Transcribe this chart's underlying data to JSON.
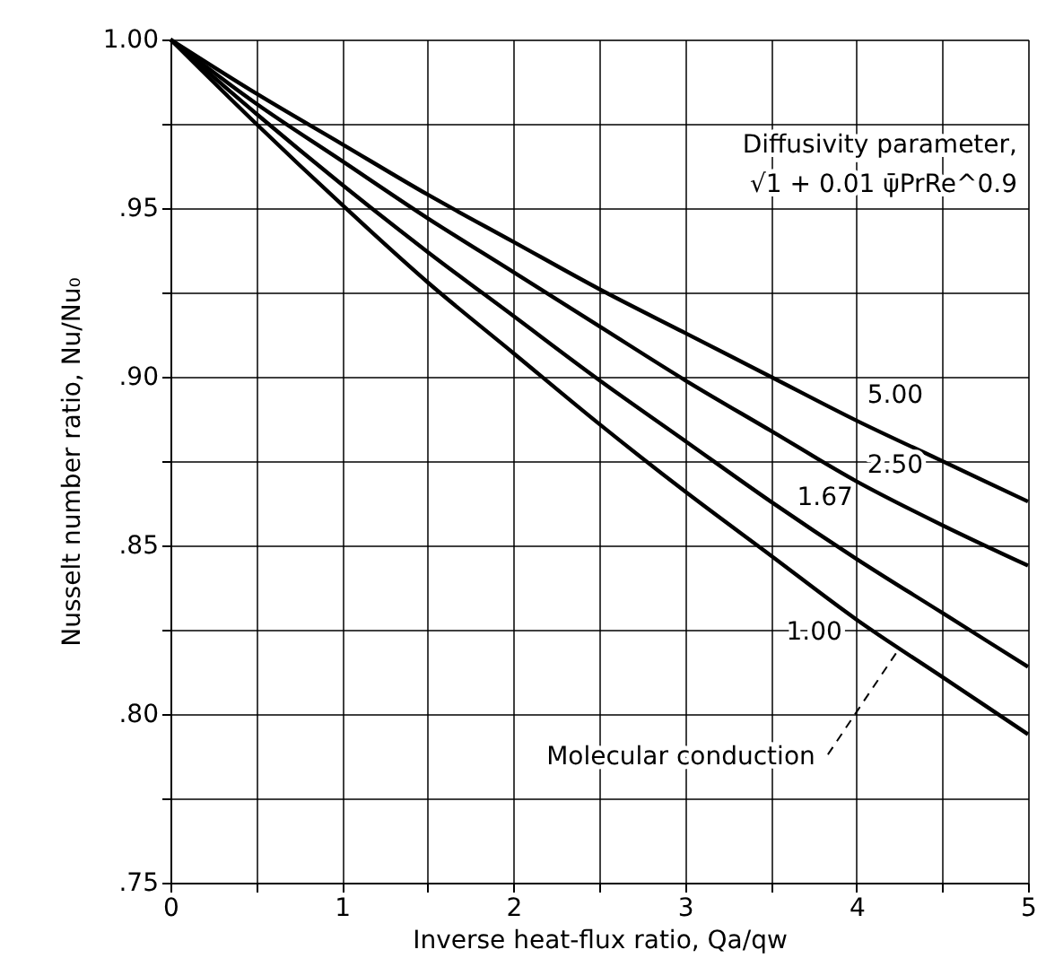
{
  "chart_data": {
    "type": "line",
    "xlabel": "Inverse heat-flux ratio, Qa/qw",
    "ylabel": "Nusselt number ratio, Nu/Nu₀",
    "legend_title": [
      "Diffusivity parameter,",
      "√1 + 0.01 ψ̄PrRe^0.9"
    ],
    "x": [
      0,
      0.5,
      1,
      1.5,
      2,
      2.5,
      3,
      3.5,
      4,
      4.5,
      5
    ],
    "series": [
      {
        "name": "5.00",
        "color": "#000000",
        "values": [
          1.0,
          0.984,
          0.969,
          0.954,
          0.94,
          0.926,
          0.913,
          0.9,
          0.887,
          0.875,
          0.863
        ]
      },
      {
        "name": "2.50",
        "color": "#000000",
        "values": [
          1.0,
          0.981,
          0.964,
          0.947,
          0.931,
          0.915,
          0.899,
          0.884,
          0.869,
          0.856,
          0.844
        ]
      },
      {
        "name": "1.67",
        "color": "#000000",
        "values": [
          1.0,
          0.978,
          0.957,
          0.937,
          0.918,
          0.899,
          0.881,
          0.863,
          0.846,
          0.83,
          0.814
        ]
      },
      {
        "name": "1.00",
        "color": "#000000",
        "values": [
          1.0,
          0.975,
          0.951,
          0.928,
          0.907,
          0.886,
          0.866,
          0.847,
          0.828,
          0.811,
          0.794
        ]
      }
    ],
    "annotations": [
      {
        "text": "Molecular conduction",
        "x": 4.23,
        "y": 0.818
      }
    ],
    "xlim": [
      0,
      5
    ],
    "xticks": [
      0,
      {
        "value": 0.5,
        "label": null
      },
      1,
      {
        "value": 1.5,
        "label": null
      },
      2,
      {
        "value": 2.5,
        "label": null
      },
      3,
      {
        "value": 3.5,
        "label": null
      },
      4,
      {
        "value": 4.5,
        "label": null
      },
      5
    ],
    "ylim": [
      0.75,
      1.0
    ],
    "yticks": [
      {
        "value": 0.75,
        "label": ".75"
      },
      {
        "value": 0.775,
        "label": null
      },
      {
        "value": 0.8,
        "label": ".80"
      },
      {
        "value": 0.825,
        "label": null
      },
      {
        "value": 0.85,
        "label": ".85"
      },
      {
        "value": 0.875,
        "label": null
      },
      {
        "value": 0.9,
        "label": ".90"
      },
      {
        "value": 0.925,
        "label": null
      },
      {
        "value": 0.95,
        "label": ".95"
      },
      {
        "value": 0.975,
        "label": null
      },
      {
        "value": 1.0,
        "label": "1.00"
      }
    ],
    "grid": true,
    "legend": false,
    "marker": "none",
    "line_style": "solid"
  }
}
